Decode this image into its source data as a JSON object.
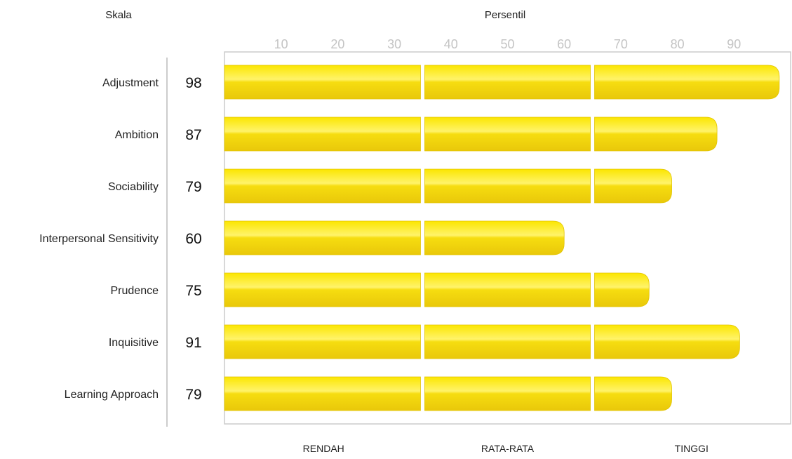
{
  "chart_data": {
    "type": "bar",
    "orientation": "horizontal",
    "header_left": "Skala",
    "header_center": "Persentil",
    "x_ticks": [
      10,
      20,
      30,
      40,
      50,
      60,
      70,
      80,
      90
    ],
    "xlim": [
      0,
      100
    ],
    "bands": [
      {
        "label": "RENDAH",
        "from": 0,
        "to": 35
      },
      {
        "label": "RATA-RATA",
        "from": 35,
        "to": 65
      },
      {
        "label": "TINGGI",
        "from": 65,
        "to": 100
      }
    ],
    "categories": [
      "Adjustment",
      "Ambition",
      "Sociability",
      "Interpersonal Sensitivity",
      "Prudence",
      "Inquisitive",
      "Learning Approach"
    ],
    "values": [
      98,
      87,
      79,
      60,
      75,
      91,
      79
    ],
    "bar_color": "#f5d800",
    "bar_highlight": "#fff27a"
  }
}
